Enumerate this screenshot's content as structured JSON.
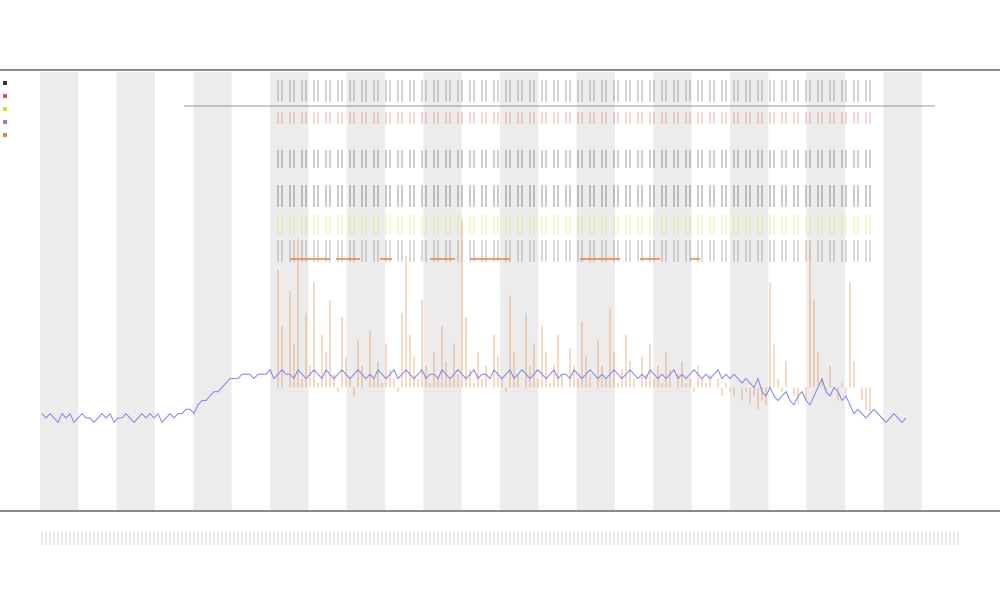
{
  "chart_data": {
    "type": "line",
    "title": "",
    "subtitle_1": "",
    "subtitle_2": "",
    "xlabel": "",
    "ylabel": "",
    "grid": true,
    "legend_placement": "top-left",
    "n_bins": 230,
    "shaded_bands": {
      "count": 12,
      "pattern": "alternating"
    },
    "series": [
      {
        "name": "",
        "color": "#7a86e8",
        "style": "line",
        "values": [
          0.22,
          0.21,
          0.22,
          0.21,
          0.2,
          0.22,
          0.21,
          0.22,
          0.2,
          0.21,
          0.22,
          0.21,
          0.21,
          0.2,
          0.21,
          0.22,
          0.21,
          0.22,
          0.2,
          0.21,
          0.21,
          0.22,
          0.21,
          0.2,
          0.21,
          0.22,
          0.21,
          0.22,
          0.21,
          0.22,
          0.2,
          0.21,
          0.22,
          0.21,
          0.22,
          0.22,
          0.23,
          0.23,
          0.22,
          0.24,
          0.25,
          0.25,
          0.26,
          0.27,
          0.27,
          0.28,
          0.29,
          0.3,
          0.3,
          0.3,
          0.31,
          0.31,
          0.31,
          0.3,
          0.31,
          0.31,
          0.31,
          0.32,
          0.3,
          0.31,
          0.32,
          0.31,
          0.31,
          0.3,
          0.32,
          0.31,
          0.3,
          0.31,
          0.32,
          0.31,
          0.3,
          0.32,
          0.31,
          0.3,
          0.31,
          0.32,
          0.31,
          0.3,
          0.31,
          0.32,
          0.31,
          0.3,
          0.31,
          0.3,
          0.32,
          0.31,
          0.3,
          0.31,
          0.32,
          0.3,
          0.31,
          0.32,
          0.31,
          0.3,
          0.31,
          0.32,
          0.3,
          0.31,
          0.31,
          0.3,
          0.32,
          0.31,
          0.3,
          0.31,
          0.32,
          0.31,
          0.3,
          0.31,
          0.32,
          0.3,
          0.31,
          0.31,
          0.3,
          0.32,
          0.31,
          0.3,
          0.31,
          0.32,
          0.3,
          0.31,
          0.32,
          0.31,
          0.3,
          0.31,
          0.32,
          0.31,
          0.3,
          0.31,
          0.32,
          0.3,
          0.31,
          0.31,
          0.3,
          0.32,
          0.31,
          0.3,
          0.31,
          0.32,
          0.31,
          0.3,
          0.31,
          0.3,
          0.31,
          0.32,
          0.31,
          0.3,
          0.31,
          0.32,
          0.31,
          0.3,
          0.31,
          0.3,
          0.32,
          0.31,
          0.3,
          0.31,
          0.3,
          0.31,
          0.32,
          0.3,
          0.31,
          0.3,
          0.31,
          0.32,
          0.31,
          0.3,
          0.31,
          0.3,
          0.31,
          0.32,
          0.3,
          0.31,
          0.3,
          0.31,
          0.3,
          0.29,
          0.3,
          0.29,
          0.28,
          0.3,
          0.27,
          0.26,
          0.28,
          0.26,
          0.25,
          0.26,
          0.27,
          0.25,
          0.24,
          0.26,
          0.27,
          0.25,
          0.24,
          0.26,
          0.28,
          0.3,
          0.27,
          0.26,
          0.28,
          0.27,
          0.25,
          0.26,
          0.24,
          0.22,
          0.23,
          0.22,
          0.21,
          0.22,
          0.23,
          0.22,
          0.21,
          0.2,
          0.21,
          0.22,
          0.21,
          0.2,
          0.21
        ]
      },
      {
        "name": "",
        "color": "#e8823a",
        "style": "spikes",
        "values": [
          0,
          0,
          0,
          0,
          0,
          0,
          0,
          0,
          0,
          0,
          0,
          0,
          0,
          0,
          0,
          0,
          0,
          0,
          0,
          0,
          0,
          0,
          0,
          0,
          0,
          0,
          0,
          0,
          0,
          0,
          0,
          0,
          0,
          0,
          0,
          0,
          0,
          0,
          0,
          0,
          0,
          0,
          0,
          0,
          0,
          0,
          0,
          0,
          0,
          0,
          0,
          0,
          0,
          0,
          0,
          0,
          0,
          0,
          0,
          0.55,
          0.42,
          0.28,
          0.5,
          0.38,
          0.62,
          0.3,
          0.45,
          0.33,
          0.52,
          0.29,
          0.4,
          0.36,
          0.48,
          0.31,
          0.27,
          0.44,
          0.35,
          0.3,
          0.26,
          0.39,
          0.33,
          0.28,
          0.41,
          0.3,
          0.34,
          0.29,
          0.38,
          0.32,
          0.3,
          0.27,
          0.45,
          0.58,
          0.4,
          0.35,
          0.3,
          0.48,
          0.33,
          0.29,
          0.36,
          0.3,
          0.42,
          0.34,
          0.3,
          0.38,
          0.31,
          0.66,
          0.44,
          0.32,
          0.29,
          0.36,
          0.3,
          0.33,
          0.28,
          0.4,
          0.35,
          0.3,
          0.27,
          0.49,
          0.36,
          0.31,
          0.28,
          0.45,
          0.33,
          0.38,
          0.3,
          0.42,
          0.36,
          0.29,
          0.33,
          0.4,
          0.31,
          0.28,
          0.37,
          0.33,
          0.3,
          0.43,
          0.35,
          0.31,
          0.28,
          0.39,
          0.33,
          0.3,
          0.46,
          0.36,
          0.29,
          0.32,
          0.4,
          0.34,
          0.3,
          0.28,
          0.35,
          0.31,
          0.38,
          0.3,
          0.33,
          0.29,
          0.36,
          0.32,
          0.28,
          0.31,
          0.34,
          0.29,
          0.3,
          0.27,
          0.33,
          0.3,
          0.29,
          0.31,
          0.28,
          0.3,
          0.26,
          0.29,
          0.27,
          0.26,
          0.28,
          0.25,
          0.27,
          0.24,
          0.26,
          0.23,
          0.25,
          0.24,
          0.52,
          0.38,
          0.3,
          0.27,
          0.34,
          0.28,
          0.26,
          0.24,
          0.28,
          0.25,
          0.61,
          0.48,
          0.36,
          0.3,
          0.27,
          0.33,
          0.28,
          0.25,
          0.29,
          0.26,
          0.52,
          0.34,
          0.28,
          0.25,
          0.23,
          0.22,
          0,
          0,
          0,
          0,
          0,
          0,
          0,
          0
        ]
      },
      {
        "name": "",
        "color": "#d8d83a",
        "style": "ticks",
        "values": []
      },
      {
        "name": "",
        "color": "#333333",
        "style": "ticks",
        "values": []
      },
      {
        "name": "",
        "color": "#e0504a",
        "style": "ticks",
        "values": []
      }
    ],
    "ylim": [
      0,
      1
    ]
  },
  "header": {
    "title": "",
    "subtitle_1": "",
    "subtitle_2": ""
  },
  "legend": {
    "items": [
      {
        "label": "",
        "color": "#333333"
      },
      {
        "label": "",
        "color": "#e0504a"
      },
      {
        "label": "",
        "color": "#d8d83a"
      },
      {
        "label": "",
        "color": "#7a86e8"
      },
      {
        "label": "",
        "color": "#e8823a"
      }
    ]
  },
  "track_labels": {
    "first": "",
    "second": ""
  },
  "axis": {
    "xlabel": ""
  }
}
